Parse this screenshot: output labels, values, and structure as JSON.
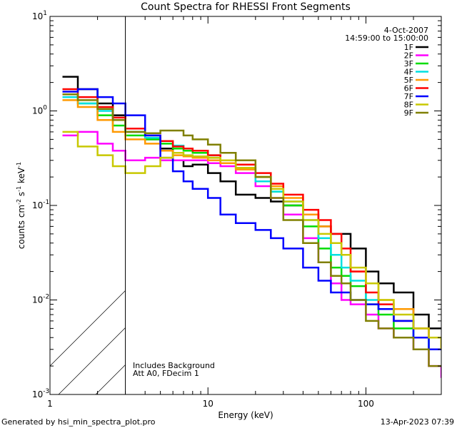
{
  "chart_data": {
    "type": "line",
    "title": "Count Spectra for RHESSI Front Segments",
    "xlabel": "Energy (keV)",
    "ylabel_main": "counts cm",
    "ylabel_sup1": "-2",
    "ylabel_mid": " s",
    "ylabel_sup2": "-1",
    "ylabel_end": " keV",
    "ylabel_sup3": "-1",
    "xscale": "log",
    "yscale": "log",
    "xlim": [
      1,
      300
    ],
    "ylim": [
      0.001,
      10
    ],
    "x_ticks": [
      {
        "value": 1,
        "label": "1"
      },
      {
        "value": 10,
        "label": "10"
      },
      {
        "value": 100,
        "label": "100"
      }
    ],
    "y_ticks": [
      {
        "value": 0.001,
        "base": "10",
        "exp": "-3"
      },
      {
        "value": 0.01,
        "base": "10",
        "exp": "-2"
      },
      {
        "value": 0.1,
        "base": "10",
        "exp": "-1"
      },
      {
        "value": 1,
        "base": "10",
        "exp": "0"
      },
      {
        "value": 10,
        "base": "10",
        "exp": "1"
      }
    ],
    "shaded_region_max_energy": 3,
    "date": "4-Oct-2007",
    "time_range": "14:59:00 to 15:00:00",
    "notes": [
      "Includes Background",
      "Att A0, FDecim 1"
    ],
    "legend_position": "top-right",
    "x_energies": [
      1.2,
      1.5,
      2,
      2.5,
      3,
      4,
      5,
      6,
      7,
      8,
      10,
      12,
      15,
      20,
      25,
      30,
      40,
      50,
      60,
      70,
      80,
      100,
      120,
      150,
      200,
      250,
      300
    ],
    "series": [
      {
        "name": "1F",
        "color": "#000000",
        "values": [
          2.3,
          1.7,
          1.2,
          0.9,
          0.6,
          0.5,
          0.4,
          0.3,
          0.26,
          0.27,
          0.22,
          0.18,
          0.13,
          0.12,
          0.11,
          0.1,
          0.08,
          0.06,
          0.05,
          0.05,
          0.035,
          0.02,
          0.015,
          0.012,
          0.007,
          0.005,
          0.005
        ]
      },
      {
        "name": "2F",
        "color": "#ff00ff",
        "values": [
          0.55,
          0.6,
          0.45,
          0.38,
          0.3,
          0.32,
          0.3,
          0.3,
          0.3,
          0.3,
          0.28,
          0.26,
          0.22,
          0.16,
          0.12,
          0.08,
          0.045,
          0.025,
          0.015,
          0.01,
          0.009,
          0.007,
          0.005,
          0.004,
          0.003,
          0.002,
          0.0015
        ]
      },
      {
        "name": "3F",
        "color": "#00dd00",
        "values": [
          1.5,
          1.2,
          0.9,
          0.7,
          0.55,
          0.5,
          0.45,
          0.4,
          0.38,
          0.36,
          0.32,
          0.28,
          0.25,
          0.2,
          0.14,
          0.1,
          0.06,
          0.035,
          0.022,
          0.018,
          0.014,
          0.009,
          0.007,
          0.005,
          0.004,
          0.003,
          0.003
        ]
      },
      {
        "name": "4F",
        "color": "#00e0e0",
        "values": [
          1.4,
          1.2,
          1.0,
          0.8,
          0.6,
          0.52,
          0.48,
          0.43,
          0.4,
          0.38,
          0.34,
          0.3,
          0.25,
          0.18,
          0.14,
          0.11,
          0.07,
          0.045,
          0.03,
          0.022,
          0.016,
          0.01,
          0.008,
          0.006,
          0.004,
          0.003,
          0.003
        ]
      },
      {
        "name": "5F",
        "color": "#ff9900",
        "values": [
          1.3,
          1.1,
          0.8,
          0.6,
          0.5,
          0.45,
          0.38,
          0.34,
          0.33,
          0.32,
          0.3,
          0.28,
          0.24,
          0.2,
          0.16,
          0.12,
          0.08,
          0.06,
          0.04,
          0.03,
          0.02,
          0.015,
          0.01,
          0.008,
          0.005,
          0.004,
          0.003
        ]
      },
      {
        "name": "6F",
        "color": "#ff0000",
        "values": [
          1.7,
          1.4,
          1.1,
          0.85,
          0.65,
          0.55,
          0.48,
          0.42,
          0.4,
          0.38,
          0.34,
          0.3,
          0.27,
          0.22,
          0.17,
          0.13,
          0.09,
          0.07,
          0.05,
          0.035,
          0.02,
          0.012,
          0.009,
          0.006,
          0.005,
          0.004,
          0.004
        ]
      },
      {
        "name": "7F",
        "color": "#0000ff",
        "values": [
          1.6,
          1.7,
          1.4,
          1.2,
          0.9,
          0.55,
          0.32,
          0.23,
          0.18,
          0.15,
          0.12,
          0.08,
          0.065,
          0.055,
          0.045,
          0.035,
          0.022,
          0.016,
          0.012,
          0.012,
          0.01,
          0.009,
          0.008,
          0.006,
          0.004,
          0.003,
          0.003
        ]
      },
      {
        "name": "8F",
        "color": "#c8c800",
        "values": [
          0.6,
          0.42,
          0.34,
          0.26,
          0.22,
          0.26,
          0.32,
          0.36,
          0.34,
          0.33,
          0.32,
          0.3,
          0.25,
          0.2,
          0.15,
          0.11,
          0.07,
          0.05,
          0.04,
          0.03,
          0.022,
          0.015,
          0.01,
          0.007,
          0.005,
          0.004,
          0.003
        ]
      },
      {
        "name": "9F",
        "color": "#808000",
        "values": [
          1.5,
          1.3,
          1.05,
          0.8,
          0.6,
          0.58,
          0.62,
          0.62,
          0.55,
          0.5,
          0.44,
          0.36,
          0.3,
          0.2,
          0.12,
          0.07,
          0.04,
          0.025,
          0.018,
          0.015,
          0.01,
          0.006,
          0.005,
          0.004,
          0.003,
          0.002,
          0.002
        ]
      }
    ]
  },
  "footer": {
    "generated_by": "Generated by hsi_min_spectra_plot.pro",
    "timestamp": "13-Apr-2023 07:39"
  }
}
